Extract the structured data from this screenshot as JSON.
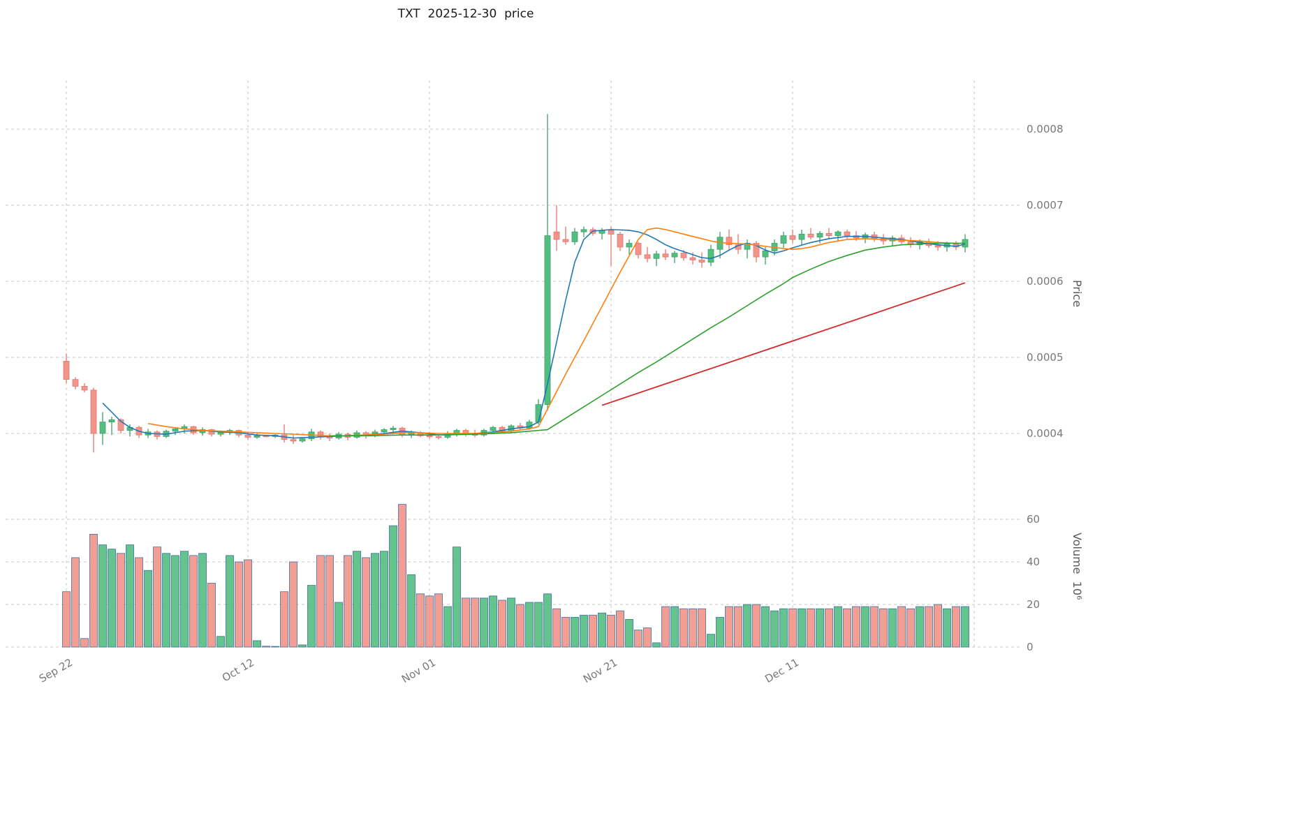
{
  "page": {
    "title": "TXT  2025-12-30  price"
  },
  "colors": {
    "up": "#52be80",
    "down": "#f1948a",
    "up_edge": "#3da06a",
    "down_edge": "#e4756d",
    "vol_edge": "#3d6f9e",
    "grid": "#c9c9c9",
    "tick_text": "#787878",
    "title_text": "#1a1a1a"
  },
  "chart_data": {
    "type": "candlestick",
    "title": "TXT  2025-12-30  price",
    "subtitle": "",
    "legend": "none",
    "grid": "dashed",
    "price_scale": 1e-06,
    "x_ticks": [
      {
        "day": 0,
        "label": "Sep 22"
      },
      {
        "day": 20,
        "label": "Oct 12"
      },
      {
        "day": 40,
        "label": "Nov 01"
      },
      {
        "day": 60,
        "label": "Nov 21"
      },
      {
        "day": 80,
        "label": "Dec 11"
      },
      {
        "day": 100,
        "label": ""
      }
    ],
    "price_axis": {
      "label": "Price",
      "ticks": [
        {
          "v": 0.0004,
          "label": "0.0004"
        },
        {
          "v": 0.0005,
          "label": "0.0005"
        },
        {
          "v": 0.0006,
          "label": "0.0006"
        },
        {
          "v": 0.0007,
          "label": "0.0007"
        },
        {
          "v": 0.0008,
          "label": "0.0008"
        }
      ],
      "range": [
        0.000337,
        0.000864
      ]
    },
    "volume_axis": {
      "label": "Volume  10⁶",
      "ticks": [
        {
          "v": 0,
          "label": "0"
        },
        {
          "v": 20,
          "label": "20"
        },
        {
          "v": 40,
          "label": "40"
        },
        {
          "v": 60,
          "label": "60"
        }
      ],
      "range": [
        0,
        75
      ]
    },
    "candles": {
      "note": "values in units of 1e-6 (multiply by price_scale); one candle per day starting Sep 22",
      "open": [
        495,
        471,
        462,
        457,
        400,
        415,
        418,
        404,
        408,
        398,
        402,
        396,
        403,
        406,
        409,
        401,
        405,
        399,
        402,
        404,
        398,
        395,
        397,
        396,
        398,
        392,
        390,
        393,
        402,
        396,
        394,
        399,
        395,
        401,
        397,
        402,
        405,
        407,
        398,
        401,
        397,
        396,
        395,
        400,
        404,
        399,
        398,
        404,
        408,
        403,
        410,
        407,
        415,
        438,
        665,
        655,
        652,
        665,
        668,
        663,
        667,
        662,
        645,
        650,
        635,
        630,
        636,
        632,
        637,
        631,
        628,
        625,
        642,
        658,
        648,
        642,
        650,
        632,
        640,
        650,
        660,
        655,
        662,
        658,
        663,
        660,
        665,
        660,
        657,
        661,
        656,
        653,
        657,
        652,
        648,
        652,
        647,
        645,
        649,
        645
      ],
      "high": [
        505,
        474,
        466,
        460,
        428,
        422,
        420,
        412,
        410,
        406,
        404,
        405,
        408,
        412,
        410,
        408,
        406,
        404,
        406,
        405,
        402,
        400,
        398,
        399,
        412,
        398,
        395,
        406,
        404,
        400,
        402,
        401,
        404,
        403,
        405,
        407,
        410,
        409,
        404,
        403,
        402,
        400,
        403,
        406,
        406,
        405,
        406,
        410,
        410,
        412,
        414,
        418,
        445,
        820,
        700,
        672,
        670,
        672,
        671,
        670,
        672,
        665,
        655,
        652,
        645,
        640,
        642,
        640,
        641,
        638,
        638,
        648,
        665,
        668,
        662,
        655,
        653,
        645,
        655,
        665,
        668,
        668,
        670,
        666,
        670,
        667,
        668,
        666,
        664,
        665,
        662,
        660,
        661,
        658,
        655,
        656,
        653,
        652,
        653,
        662
      ],
      "low": [
        466,
        458,
        454,
        375,
        385,
        398,
        400,
        396,
        394,
        394,
        392,
        394,
        398,
        400,
        398,
        397,
        396,
        396,
        398,
        395,
        392,
        393,
        395,
        394,
        388,
        386,
        388,
        390,
        392,
        390,
        392,
        391,
        393,
        393,
        395,
        398,
        399,
        395,
        394,
        395,
        393,
        392,
        393,
        396,
        396,
        395,
        396,
        400,
        400,
        401,
        404,
        405,
        412,
        430,
        640,
        648,
        648,
        658,
        660,
        655,
        620,
        640,
        635,
        630,
        625,
        620,
        628,
        624,
        627,
        622,
        618,
        620,
        630,
        640,
        636,
        630,
        625,
        622,
        634,
        644,
        650,
        648,
        655,
        650,
        656,
        652,
        656,
        653,
        650,
        652,
        648,
        646,
        649,
        644,
        642,
        644,
        640,
        639,
        641,
        638
      ],
      "close": [
        471,
        462,
        457,
        400,
        415,
        418,
        404,
        408,
        398,
        402,
        396,
        403,
        406,
        409,
        401,
        405,
        399,
        402,
        404,
        398,
        395,
        397,
        396,
        398,
        392,
        390,
        393,
        402,
        396,
        394,
        399,
        395,
        401,
        397,
        402,
        405,
        407,
        398,
        401,
        397,
        396,
        395,
        400,
        404,
        399,
        398,
        404,
        408,
        403,
        410,
        407,
        415,
        438,
        660,
        655,
        652,
        665,
        668,
        663,
        667,
        662,
        645,
        650,
        635,
        630,
        636,
        632,
        637,
        631,
        628,
        625,
        642,
        658,
        648,
        642,
        650,
        632,
        640,
        650,
        660,
        655,
        662,
        658,
        663,
        660,
        665,
        660,
        657,
        661,
        656,
        653,
        657,
        652,
        648,
        652,
        647,
        645,
        649,
        645,
        655
      ],
      "volume": [
        26,
        42,
        4,
        53,
        48,
        46,
        44,
        48,
        42,
        36,
        47,
        44,
        43,
        45,
        43,
        44,
        30,
        5,
        43,
        40,
        41,
        3,
        0.4,
        0.3,
        26,
        40,
        1,
        29,
        43,
        43,
        21,
        43,
        45,
        42,
        44,
        45,
        57,
        67,
        34,
        25,
        24,
        25,
        19,
        47,
        23,
        23,
        23,
        24,
        22,
        23,
        20,
        21,
        21,
        25,
        18,
        14,
        14,
        15,
        15,
        16,
        15,
        17,
        13,
        8,
        9,
        2,
        19,
        19,
        18,
        18,
        18,
        6,
        14,
        19,
        19,
        20,
        20,
        19,
        17,
        18,
        18,
        18,
        18,
        18,
        18,
        19,
        18,
        19,
        19,
        19,
        18,
        18,
        19,
        18,
        19,
        19,
        20,
        18,
        19,
        19
      ]
    },
    "overlays": [
      {
        "name": "ma-fast-line",
        "color": "#1f77b4",
        "width": 1.6,
        "points": [
          [
            4,
            440
          ],
          [
            5,
            428
          ],
          [
            6,
            416
          ],
          [
            7,
            408
          ],
          [
            8,
            403
          ],
          [
            9,
            400
          ],
          [
            11,
            399
          ],
          [
            13,
            403
          ],
          [
            15,
            404
          ],
          [
            17,
            402
          ],
          [
            19,
            401
          ],
          [
            21,
            398
          ],
          [
            23,
            397
          ],
          [
            25,
            394
          ],
          [
            27,
            395
          ],
          [
            29,
            396
          ],
          [
            31,
            397
          ],
          [
            33,
            398
          ],
          [
            35,
            400
          ],
          [
            37,
            403
          ],
          [
            39,
            401
          ],
          [
            41,
            398
          ],
          [
            43,
            399
          ],
          [
            45,
            400
          ],
          [
            47,
            402
          ],
          [
            49,
            406
          ],
          [
            51,
            409
          ],
          [
            52,
            415
          ],
          [
            53,
            465
          ],
          [
            54,
            520
          ],
          [
            55,
            575
          ],
          [
            56,
            625
          ],
          [
            57,
            655
          ],
          [
            58,
            666
          ],
          [
            60,
            668
          ],
          [
            62,
            667
          ],
          [
            63,
            665
          ],
          [
            64,
            661
          ],
          [
            65,
            655
          ],
          [
            66,
            648
          ],
          [
            67,
            643
          ],
          [
            68,
            639
          ],
          [
            69,
            635
          ],
          [
            70,
            631
          ],
          [
            71,
            630
          ],
          [
            72,
            634
          ],
          [
            73,
            641
          ],
          [
            74,
            647
          ],
          [
            75,
            650
          ],
          [
            76,
            647
          ],
          [
            77,
            641
          ],
          [
            78,
            637
          ],
          [
            79,
            640
          ],
          [
            80,
            644
          ],
          [
            82,
            651
          ],
          [
            84,
            656
          ],
          [
            86,
            659
          ],
          [
            88,
            659
          ],
          [
            90,
            657
          ],
          [
            92,
            655
          ],
          [
            94,
            651
          ],
          [
            96,
            648
          ],
          [
            98,
            646
          ],
          [
            99,
            649
          ]
        ]
      },
      {
        "name": "ma-mid-line",
        "color": "#ff7f0e",
        "width": 1.6,
        "points": [
          [
            9,
            413
          ],
          [
            11,
            409
          ],
          [
            13,
            406
          ],
          [
            15,
            404
          ],
          [
            17,
            403
          ],
          [
            19,
            402
          ],
          [
            21,
            401
          ],
          [
            23,
            400
          ],
          [
            25,
            399
          ],
          [
            27,
            398
          ],
          [
            29,
            397
          ],
          [
            31,
            397
          ],
          [
            33,
            398
          ],
          [
            35,
            399
          ],
          [
            37,
            401
          ],
          [
            39,
            401
          ],
          [
            41,
            400
          ],
          [
            43,
            400
          ],
          [
            45,
            400
          ],
          [
            47,
            401
          ],
          [
            49,
            403
          ],
          [
            51,
            406
          ],
          [
            52,
            409
          ],
          [
            53,
            432
          ],
          [
            55,
            478
          ],
          [
            57,
            522
          ],
          [
            59,
            567
          ],
          [
            61,
            612
          ],
          [
            63,
            655
          ],
          [
            64,
            668
          ],
          [
            65,
            670
          ],
          [
            66,
            668
          ],
          [
            67,
            665
          ],
          [
            68,
            662
          ],
          [
            69,
            659
          ],
          [
            70,
            656
          ],
          [
            71,
            653
          ],
          [
            72,
            651
          ],
          [
            73,
            650
          ],
          [
            75,
            649
          ],
          [
            77,
            646
          ],
          [
            79,
            643
          ],
          [
            80,
            642
          ],
          [
            81,
            643
          ],
          [
            82,
            645
          ],
          [
            83,
            648
          ],
          [
            84,
            651
          ],
          [
            86,
            655
          ],
          [
            88,
            656
          ],
          [
            90,
            655
          ],
          [
            92,
            654
          ],
          [
            94,
            653
          ],
          [
            96,
            651
          ],
          [
            98,
            650
          ],
          [
            99,
            650
          ]
        ]
      },
      {
        "name": "ma-slow-line",
        "color": "#2ca02c",
        "width": 1.6,
        "points": [
          [
            29,
            397
          ],
          [
            33,
            397
          ],
          [
            37,
            398
          ],
          [
            41,
            398
          ],
          [
            45,
            399
          ],
          [
            49,
            401
          ],
          [
            52,
            404
          ],
          [
            53,
            405
          ],
          [
            55,
            420
          ],
          [
            57,
            435
          ],
          [
            59,
            450
          ],
          [
            61,
            465
          ],
          [
            63,
            480
          ],
          [
            65,
            494
          ],
          [
            67,
            509
          ],
          [
            69,
            524
          ],
          [
            71,
            539
          ],
          [
            73,
            553
          ],
          [
            75,
            568
          ],
          [
            77,
            583
          ],
          [
            79,
            597
          ],
          [
            80,
            605
          ],
          [
            82,
            616
          ],
          [
            84,
            626
          ],
          [
            86,
            634
          ],
          [
            88,
            641
          ],
          [
            90,
            645
          ],
          [
            92,
            648
          ],
          [
            94,
            649
          ],
          [
            96,
            650
          ],
          [
            98,
            650
          ],
          [
            99,
            650
          ]
        ]
      },
      {
        "name": "trend-line",
        "color": "#d62728",
        "width": 1.8,
        "points": [
          [
            59,
            437
          ],
          [
            99,
            598
          ]
        ]
      }
    ]
  }
}
